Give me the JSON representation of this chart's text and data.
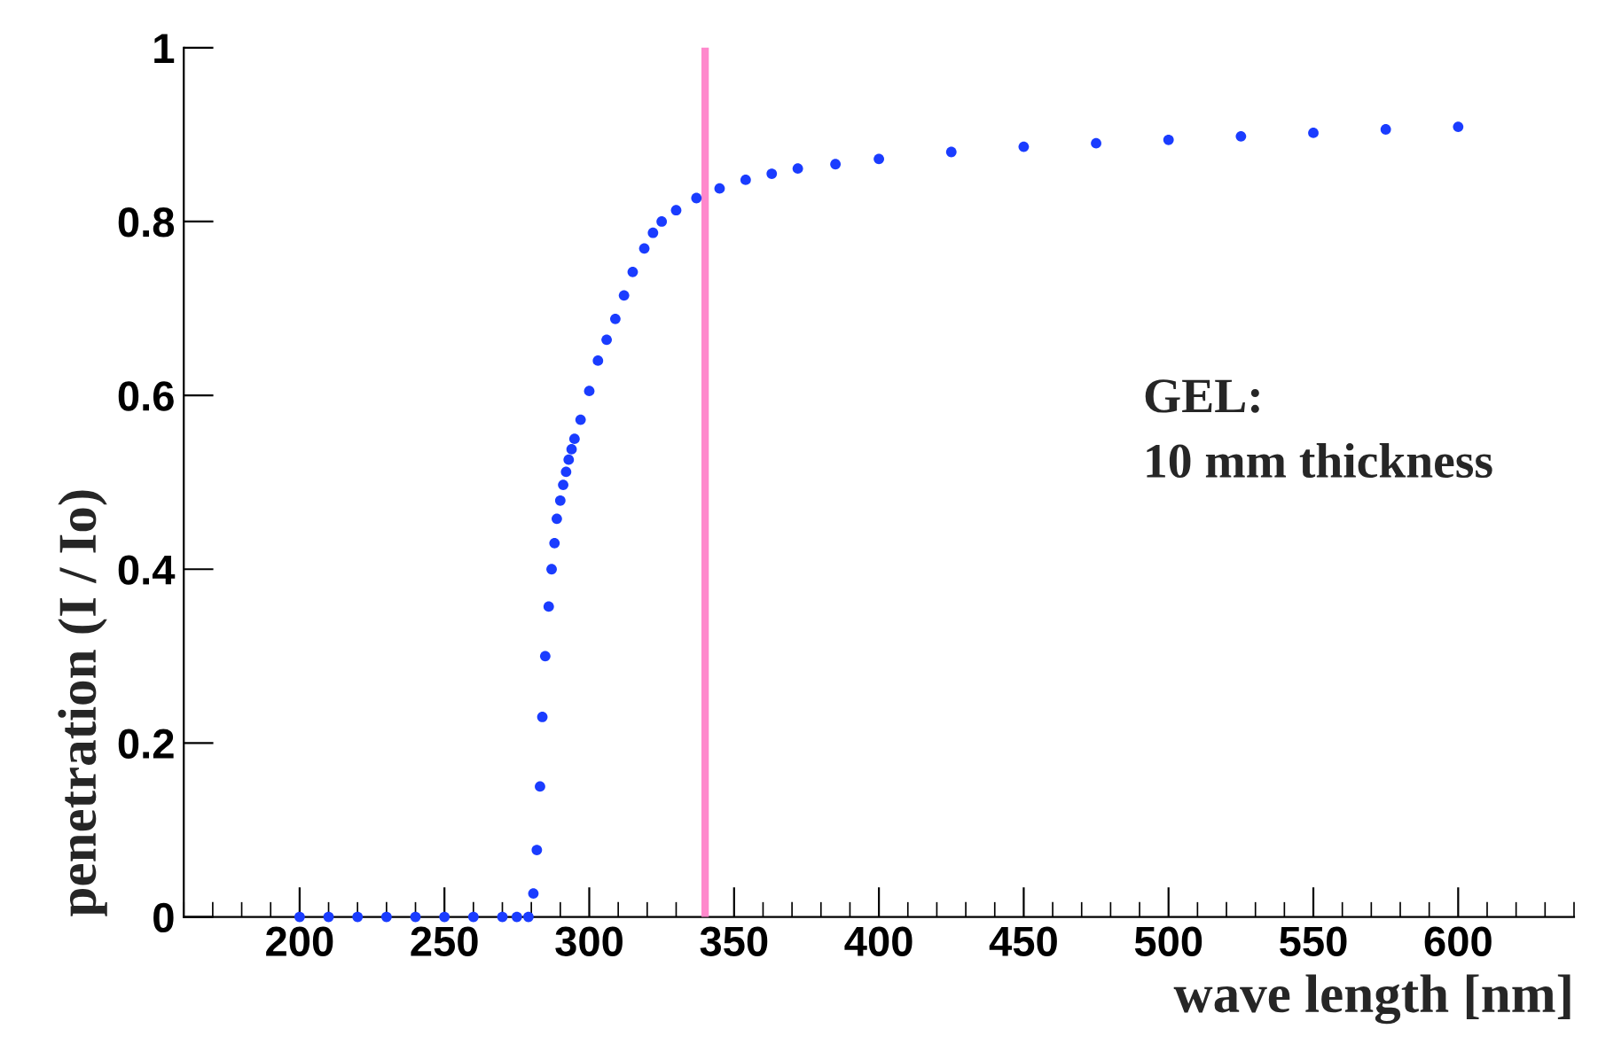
{
  "chart_data": {
    "type": "scatter",
    "xlabel": "wave length [nm]",
    "ylabel": "penetration (I / Io)",
    "annotations": [
      "GEL:\n10 mm thickness"
    ],
    "series": [
      {
        "color": "#1a3cff",
        "x": [
          200,
          210,
          220,
          230,
          240,
          250,
          260,
          270,
          275,
          279,
          280.7,
          281.9,
          283,
          283.8,
          284.8,
          286,
          287,
          288,
          288.8,
          290,
          291,
          292,
          292.9,
          293.9,
          294.9,
          297,
          300,
          303,
          306,
          309,
          312,
          315,
          319,
          322,
          325,
          330,
          337,
          345,
          354,
          363,
          372,
          385,
          400,
          425,
          450,
          475,
          500,
          525,
          550,
          575,
          600
        ],
        "values": [
          0,
          0,
          0,
          0,
          0,
          0,
          0,
          0,
          0,
          0,
          0.027,
          0.077,
          0.15,
          0.23,
          0.3,
          0.357,
          0.4,
          0.43,
          0.458,
          0.479,
          0.497,
          0.512,
          0.526,
          0.538,
          0.55,
          0.572,
          0.605,
          0.64,
          0.664,
          0.688,
          0.715,
          0.742,
          0.769,
          0.787,
          0.8,
          0.813,
          0.827,
          0.838,
          0.848,
          0.855,
          0.861,
          0.866,
          0.872,
          0.88,
          0.886,
          0.89,
          0.894,
          0.898,
          0.902,
          0.906,
          0.909
        ]
      }
    ],
    "marker": "circle",
    "xlim": [
      160,
      640
    ],
    "ylim": [
      0,
      1
    ],
    "xticks": [
      200,
      250,
      300,
      350,
      400,
      450,
      500,
      550,
      600
    ],
    "yticks": [
      0,
      0.2,
      0.4,
      0.6,
      0.8,
      1
    ],
    "ref_lines": [
      {
        "axis": "x",
        "value": 340,
        "color": "#ff88cc"
      }
    ],
    "grid": false,
    "legend": false
  }
}
